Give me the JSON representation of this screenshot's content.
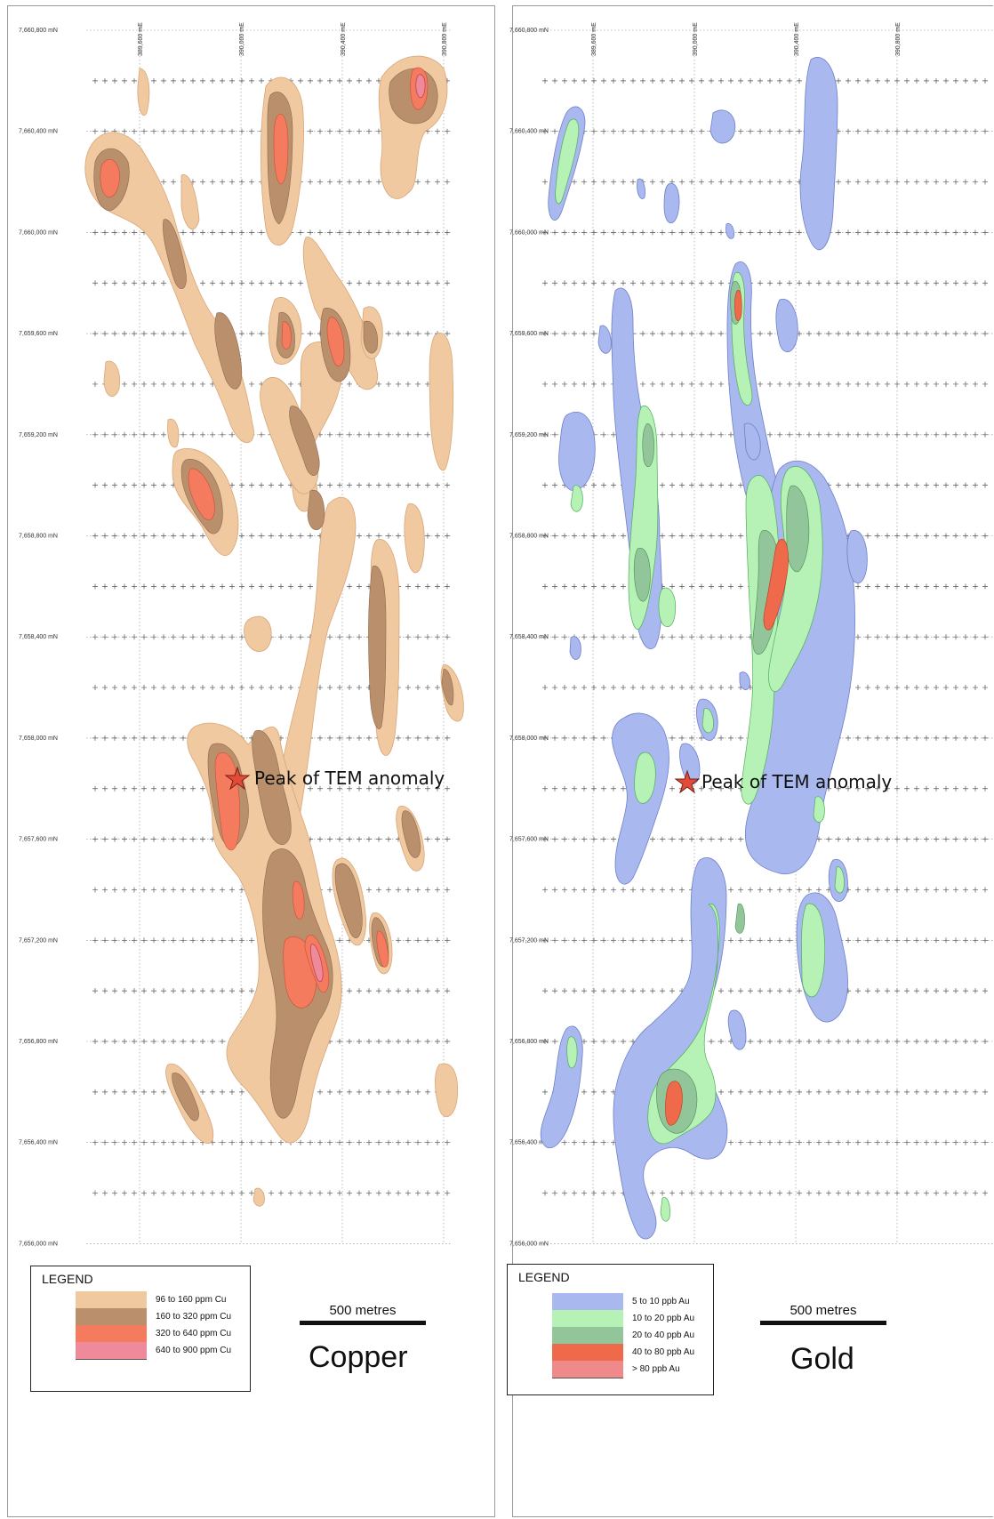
{
  "copper": {
    "northings": [
      "7,660,800 mN",
      "7,660,400 mN",
      "7,660,000 mN",
      "7,659,600 mN",
      "7,659,200 mN",
      "7,658,800 mN",
      "7,658,400 mN",
      "7,658,000 mN",
      "7,657,600 mN",
      "7,657,200 mN",
      "7,656,800 mN",
      "7,656,400 mN",
      "7,656,000 mN"
    ],
    "eastings": [
      "389,600 mE",
      "390,000 mE",
      "390,400 mE",
      "390,800 mE"
    ],
    "annotation": "Peak of TEM anomaly",
    "legend": {
      "title": "LEGEND",
      "items": [
        {
          "label": "96 to 160 ppm Cu",
          "color": "#f0c9a0"
        },
        {
          "label": "160 to 320 ppm Cu",
          "color": "#b98f6c"
        },
        {
          "label": "320 to 640 ppm Cu",
          "color": "#f47b5e"
        },
        {
          "label": "640 to 900 ppm Cu",
          "color": "#ef8a9a"
        }
      ]
    },
    "scale_label": "500 metres",
    "title": "Copper"
  },
  "gold": {
    "northings": [
      "7,660,800 mN",
      "7,660,400 mN",
      "7,660,000 mN",
      "7,659,600 mN",
      "7,659,200 mN",
      "7,658,800 mN",
      "7,658,400 mN",
      "7,658,000 mN",
      "7,657,600 mN",
      "7,657,200 mN",
      "7,656,800 mN",
      "7,656,400 mN",
      "7,656,000 mN"
    ],
    "eastings": [
      "389,600 mE",
      "390,000 mE",
      "390,400 mE",
      "390,800 mE"
    ],
    "annotation": "Peak of TEM anomaly",
    "legend": {
      "title": "LEGEND",
      "items": [
        {
          "label": "5 to 10 ppb Au",
          "color": "#a9b8ee"
        },
        {
          "label": "10 to 20 ppb Au",
          "color": "#b6f1b6"
        },
        {
          "label": "20 to 40 ppb Au",
          "color": "#93c59a"
        },
        {
          "label": "40 to 80 ppb Au",
          "color": "#ef6a4a"
        },
        {
          "label": "> 80 ppb Au",
          "color": "#f08a8a"
        }
      ]
    },
    "scale_label": "500 metres",
    "title": "Gold"
  }
}
